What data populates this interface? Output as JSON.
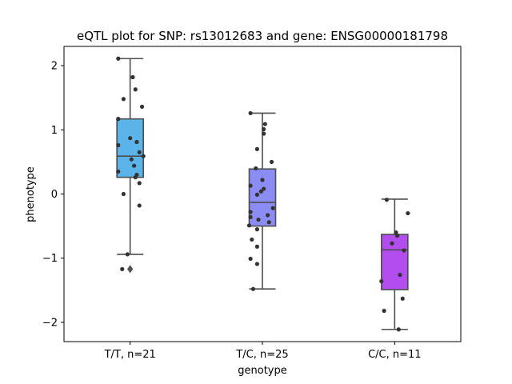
{
  "chart_data": {
    "type": "box",
    "title": "eQTL plot for SNP: rs13012683 and gene: ENSG00000181798",
    "xlabel": "genotype",
    "ylabel": "phenotype",
    "ylim": [
      -2.3,
      2.3
    ],
    "yticks": [
      {
        "value": -2,
        "label": "−2"
      },
      {
        "value": -1,
        "label": "−1"
      },
      {
        "value": 0,
        "label": "0"
      },
      {
        "value": 1,
        "label": "1"
      },
      {
        "value": 2,
        "label": "2"
      }
    ],
    "categories": [
      "T/T, n=21",
      "T/C, n=25",
      "C/C, n=11"
    ],
    "colors": [
      "#5ab4ea",
      "#8c8cf5",
      "#b44df0"
    ],
    "boxes": [
      {
        "q1": 0.26,
        "median": 0.59,
        "q3": 1.17,
        "whisker_low": -0.94,
        "whisker_high": 2.11,
        "outliers": [
          -1.17
        ]
      },
      {
        "q1": -0.5,
        "median": -0.13,
        "q3": 0.39,
        "whisker_low": -1.48,
        "whisker_high": 1.26,
        "outliers": []
      },
      {
        "q1": -1.49,
        "median": -0.87,
        "q3": -0.63,
        "whisker_low": -2.11,
        "whisker_high": -0.08,
        "outliers": []
      }
    ],
    "points": [
      [
        [
          -0.09,
          2.11
        ],
        [
          0.02,
          1.82
        ],
        [
          0.04,
          1.63
        ],
        [
          -0.05,
          1.48
        ],
        [
          0.09,
          1.36
        ],
        [
          -0.09,
          1.17
        ],
        [
          -0.09,
          0.76
        ],
        [
          0.0,
          0.87
        ],
        [
          0.05,
          0.81
        ],
        [
          0.07,
          0.65
        ],
        [
          0.1,
          0.59
        ],
        [
          0.01,
          0.54
        ],
        [
          0.03,
          0.44
        ],
        [
          -0.09,
          0.35
        ],
        [
          0.05,
          0.3
        ],
        [
          0.04,
          0.26
        ],
        [
          0.07,
          0.17
        ],
        [
          -0.05,
          0.0
        ],
        [
          0.07,
          -0.18
        ],
        [
          -0.02,
          -0.94
        ],
        [
          -0.06,
          -1.17
        ]
      ],
      [
        [
          -0.09,
          1.26
        ],
        [
          0.02,
          1.09
        ],
        [
          0.01,
          1.01
        ],
        [
          0.01,
          0.94
        ],
        [
          -0.04,
          0.7
        ],
        [
          0.07,
          0.5
        ],
        [
          -0.05,
          0.4
        ],
        [
          0.0,
          0.22
        ],
        [
          -0.09,
          0.13
        ],
        [
          0.01,
          0.08
        ],
        [
          -0.01,
          0.04
        ],
        [
          -0.04,
          -0.01
        ],
        [
          0.08,
          -0.22
        ],
        [
          -0.09,
          -0.28
        ],
        [
          -0.09,
          -0.36
        ],
        [
          -0.03,
          -0.4
        ],
        [
          0.05,
          -0.44
        ],
        [
          -0.1,
          -0.49
        ],
        [
          -0.04,
          -0.55
        ],
        [
          -0.08,
          -0.71
        ],
        [
          -0.04,
          -0.82
        ],
        [
          -0.09,
          -1.01
        ],
        [
          -0.04,
          -1.09
        ],
        [
          -0.07,
          -1.48
        ],
        [
          0.04,
          -0.33
        ]
      ],
      [
        [
          -0.06,
          -0.09
        ],
        [
          0.1,
          -0.3
        ],
        [
          0.01,
          -0.6
        ],
        [
          0.02,
          -0.65
        ],
        [
          -0.02,
          -0.77
        ],
        [
          0.07,
          -0.88
        ],
        [
          0.04,
          -1.26
        ],
        [
          -0.1,
          -1.36
        ],
        [
          0.06,
          -1.63
        ],
        [
          -0.08,
          -1.82
        ],
        [
          0.03,
          -2.11
        ]
      ]
    ]
  }
}
